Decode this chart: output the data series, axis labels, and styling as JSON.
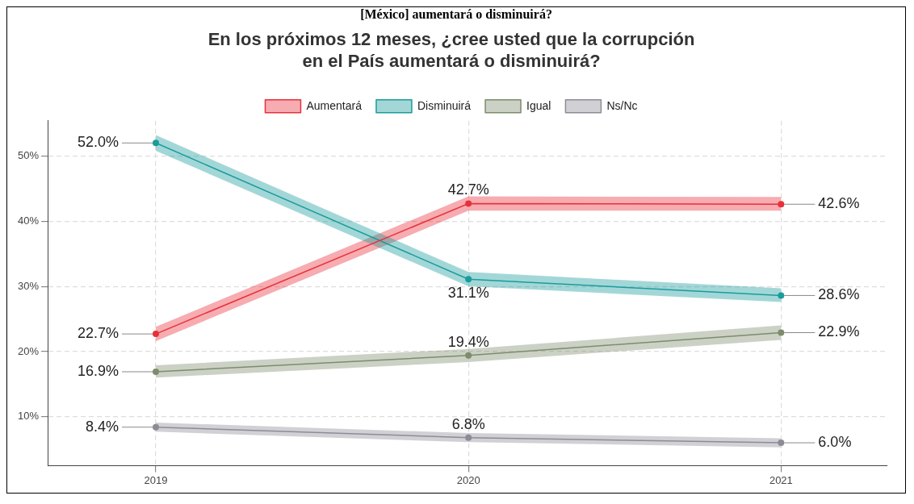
{
  "chart_data": {
    "type": "line",
    "title": "En los próximos 12 meses, ¿cree usted que la corrupción\nen el País aumentará o disminuirá?",
    "annotations": [
      "[México] aumentará o disminuirá?"
    ],
    "x": [
      2019,
      2020,
      2021
    ],
    "series": [
      {
        "name": "Aumentará",
        "color": "#e8303a",
        "values": [
          22.7,
          42.7,
          42.6
        ],
        "lower": [
          21.6,
          41.6,
          41.6
        ],
        "upper": [
          23.8,
          43.8,
          43.7
        ]
      },
      {
        "name": "Disminuirá",
        "color": "#1a9c9c",
        "values": [
          52.0,
          31.1,
          28.6
        ],
        "lower": [
          50.8,
          30.0,
          27.6
        ],
        "upper": [
          53.2,
          32.2,
          29.7
        ]
      },
      {
        "name": "Igual",
        "color": "#7d8c6c",
        "values": [
          16.9,
          19.4,
          22.9
        ],
        "lower": [
          16.0,
          18.4,
          21.8
        ],
        "upper": [
          17.9,
          20.4,
          24.0
        ]
      },
      {
        "name": "Ns/Nc",
        "color": "#8c8c96",
        "values": [
          8.4,
          6.8,
          6.0
        ],
        "lower": [
          7.7,
          6.1,
          5.3
        ],
        "upper": [
          9.1,
          7.5,
          6.7
        ]
      }
    ],
    "xlim": [
      2018.654,
      2021.34
    ],
    "xticks": [
      2019,
      2020,
      2021
    ],
    "ylim": [
      2.5,
      55.4
    ],
    "yticks": [
      {
        "value": 10,
        "label": "10%"
      },
      {
        "value": 20,
        "label": "20%"
      },
      {
        "value": 30,
        "label": "30%"
      },
      {
        "value": 40,
        "label": "40%"
      },
      {
        "value": 50,
        "label": "50%"
      }
    ],
    "value_labels": [
      "22.7%",
      "42.7%",
      "42.6%",
      "52.0%",
      "31.1%",
      "28.6%",
      "16.9%",
      "19.4%",
      "22.9%",
      "8.4%",
      "6.8%",
      "6.0%"
    ],
    "grid": true,
    "legend": "top",
    "marker": "circle",
    "line_style": "solid"
  }
}
